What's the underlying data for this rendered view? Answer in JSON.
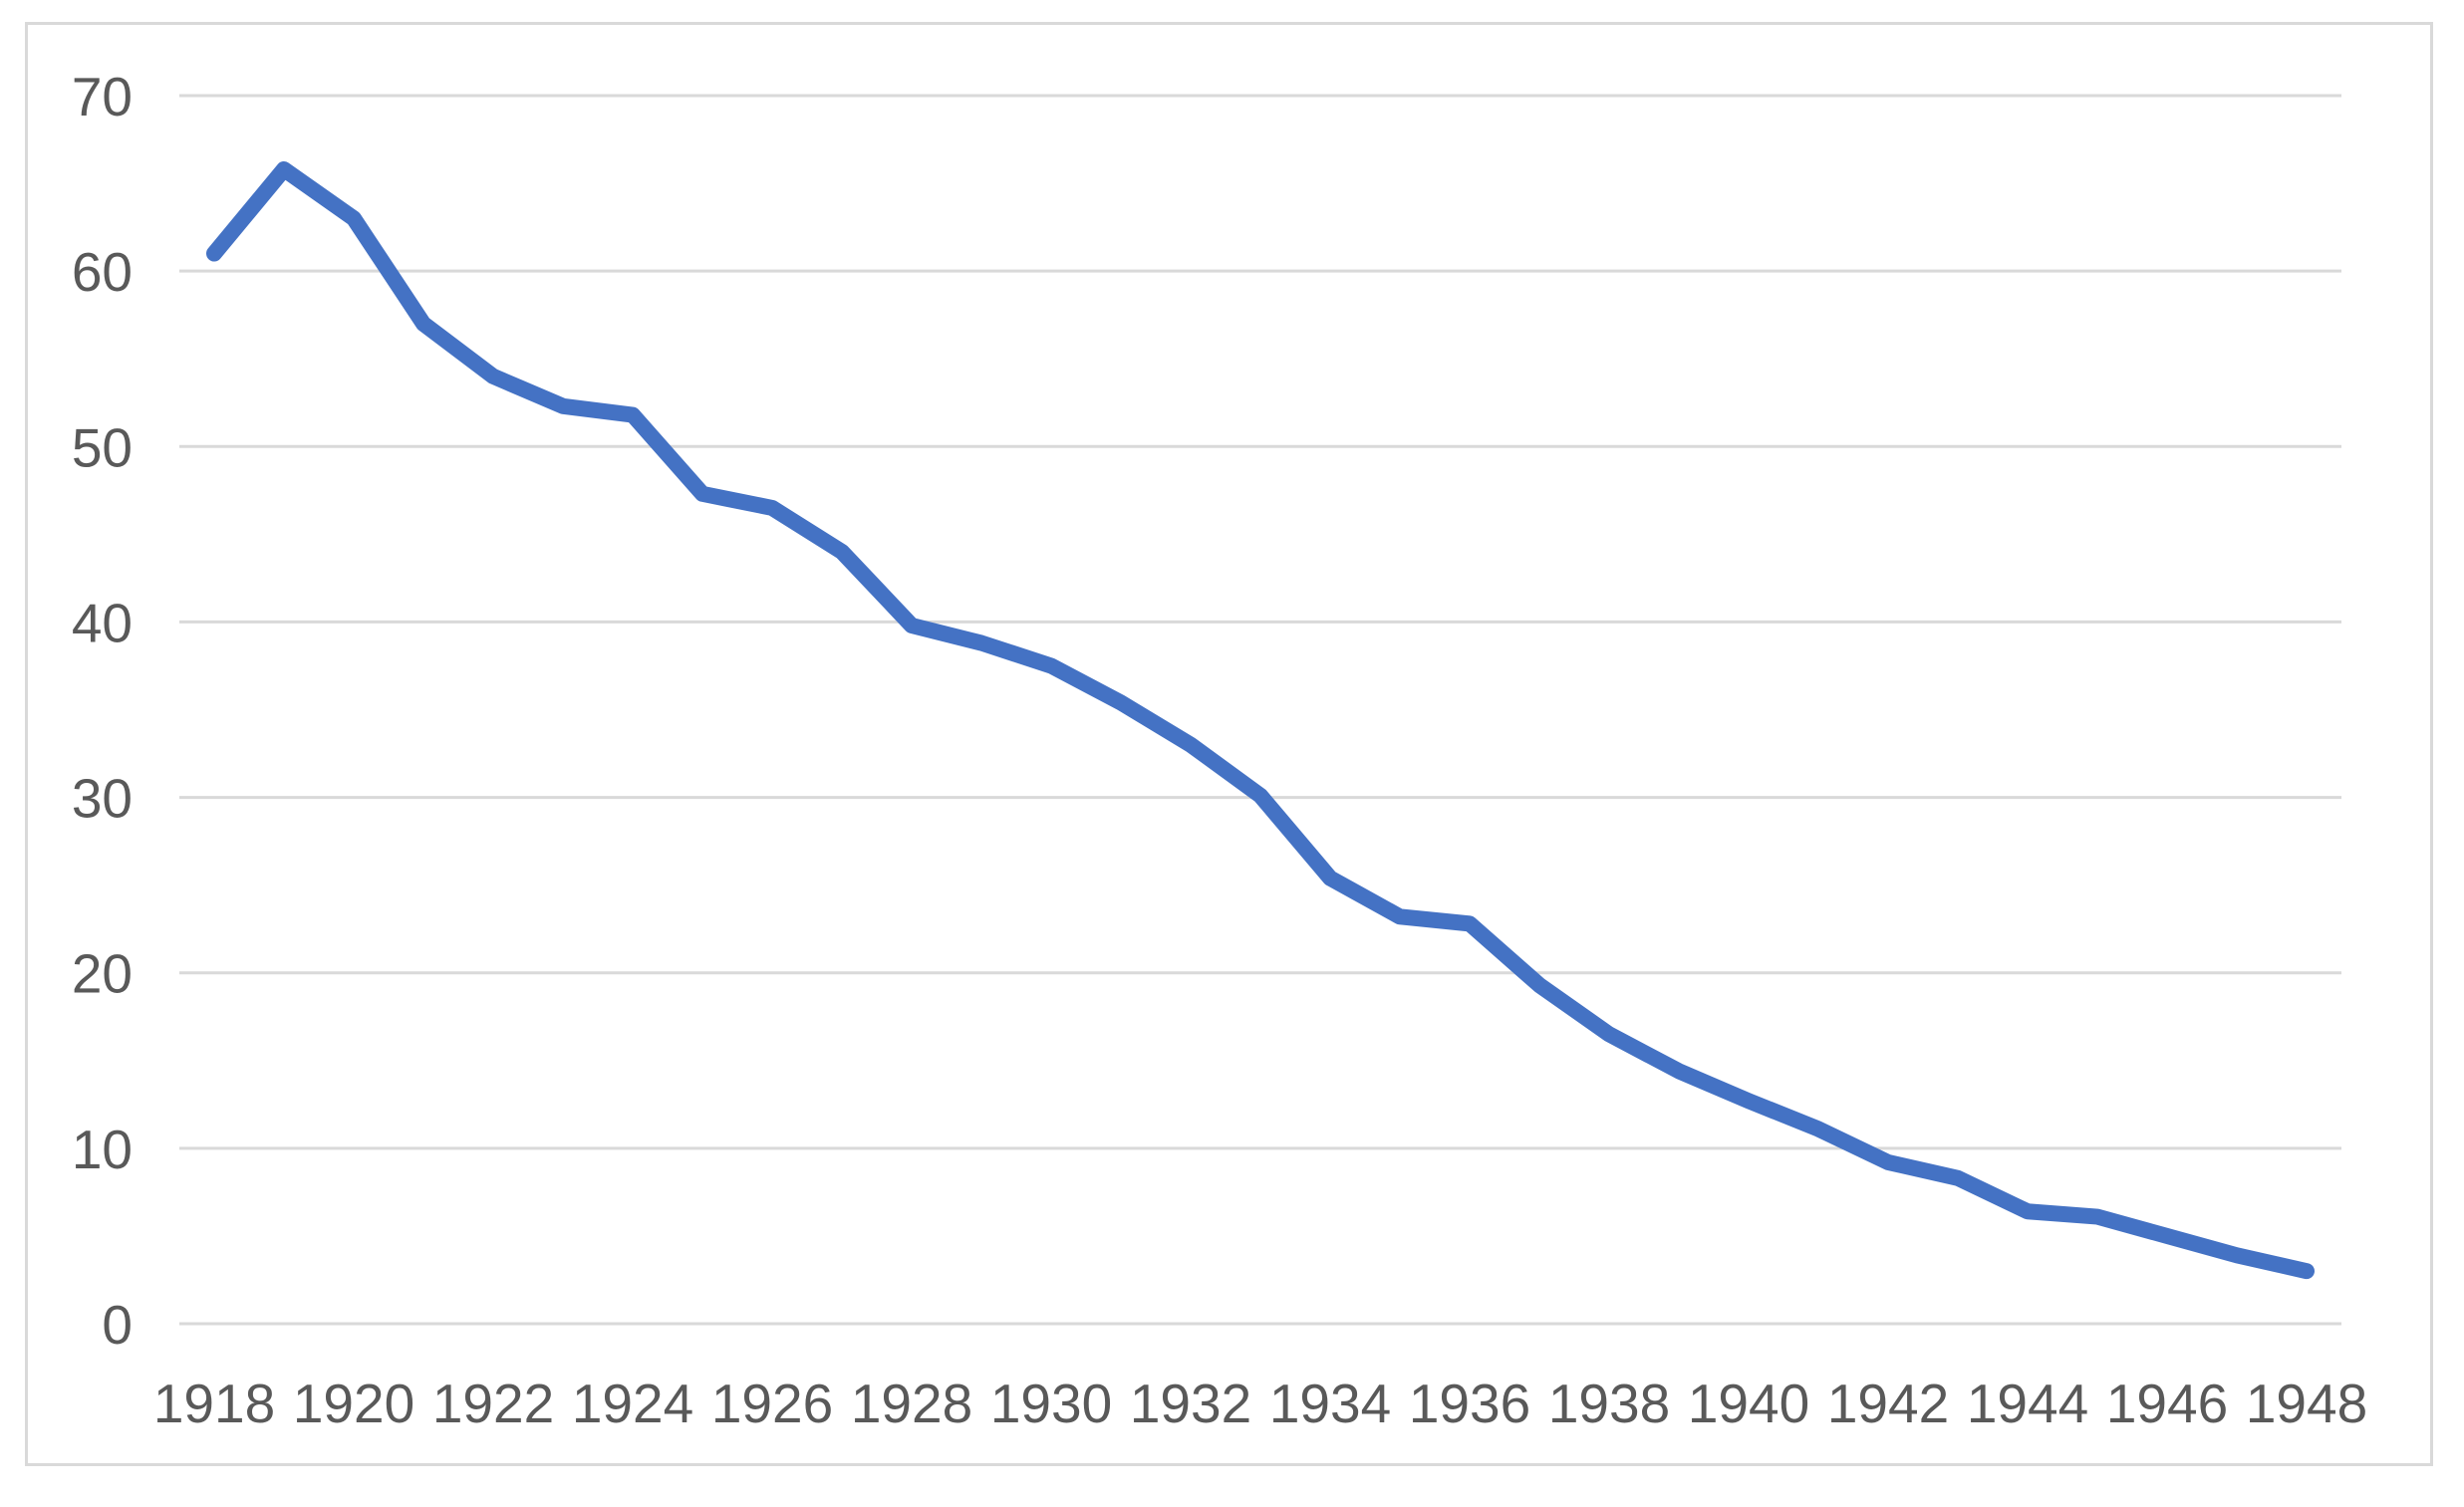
{
  "chart_data": {
    "type": "line",
    "title": "",
    "xlabel": "",
    "ylabel": "",
    "legend": "none",
    "grid": "horizontal",
    "x": [
      1918,
      1919,
      1920,
      1921,
      1922,
      1923,
      1924,
      1925,
      1926,
      1927,
      1928,
      1929,
      1930,
      1931,
      1932,
      1933,
      1934,
      1935,
      1936,
      1937,
      1938,
      1939,
      1940,
      1941,
      1942,
      1943,
      1944,
      1945,
      1946,
      1947,
      1948
    ],
    "values": [
      61,
      65.8,
      63,
      57,
      54,
      52.3,
      51.8,
      47.3,
      46.5,
      44,
      39.8,
      38.8,
      37.5,
      35.4,
      33,
      30.1,
      25.4,
      23.2,
      22.8,
      19.3,
      16.5,
      14.4,
      12.7,
      11.1,
      9.2,
      8.3,
      6.4,
      6.1,
      5,
      3.9,
      3
    ],
    "x_tick_labels": [
      "1918",
      "1920",
      "1922",
      "1924",
      "1926",
      "1928",
      "1930",
      "1932",
      "1934",
      "1936",
      "1938",
      "1940",
      "1942",
      "1944",
      "1946",
      "1948"
    ],
    "y_ticks": [
      0,
      10,
      20,
      30,
      40,
      50,
      60,
      70
    ],
    "ylim": [
      0,
      70
    ],
    "colors": {
      "line": "#4472C4",
      "gridline": "#D9D9D9",
      "axis_text": "#595959",
      "frame_border": "#D9D9D9",
      "background": "#FFFFFF"
    }
  }
}
